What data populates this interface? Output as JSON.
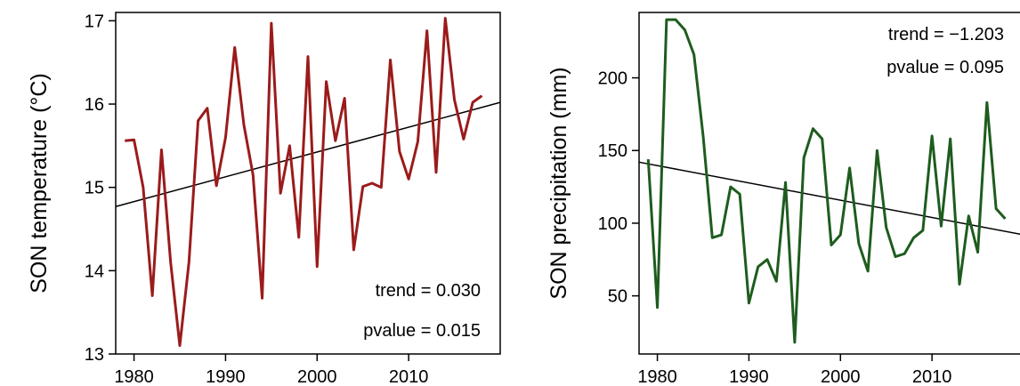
{
  "chart_data": [
    {
      "type": "line",
      "ylabel": "SON temperature (°C)",
      "xlabel": "",
      "xlim": [
        1978,
        2020
      ],
      "ylim": [
        13,
        17.1
      ],
      "xticks": [
        1980,
        1990,
        2000,
        2010
      ],
      "yticks": [
        13,
        14,
        15,
        16,
        17
      ],
      "grid": false,
      "series": [
        {
          "color": "#9b1b1b",
          "x": [
            1979,
            1980,
            1981,
            1982,
            1983,
            1984,
            1985,
            1986,
            1987,
            1988,
            1989,
            1990,
            1991,
            1992,
            1993,
            1994,
            1995,
            1996,
            1997,
            1998,
            1999,
            2000,
            2001,
            2002,
            2003,
            2004,
            2005,
            2006,
            2007,
            2008,
            2009,
            2010,
            2011,
            2012,
            2013,
            2014,
            2015,
            2016,
            2017,
            2018
          ],
          "y": [
            15.56,
            15.57,
            15.0,
            13.7,
            15.45,
            14.1,
            13.1,
            14.1,
            15.8,
            15.95,
            15.02,
            15.6,
            16.68,
            15.75,
            15.15,
            13.67,
            16.97,
            14.93,
            15.5,
            14.4,
            16.57,
            14.05,
            16.27,
            15.56,
            16.07,
            14.25,
            15.01,
            15.05,
            15.0,
            16.53,
            15.43,
            15.1,
            15.55,
            16.88,
            15.18,
            17.03,
            16.05,
            15.58,
            16.02,
            16.1
          ]
        }
      ],
      "trend_line": {
        "start": [
          1978,
          14.77
        ],
        "end": [
          2020,
          16.02
        ],
        "color": "#000000"
      },
      "annotations": [
        "trend = 0.030",
        "pvalue = 0.015"
      ]
    },
    {
      "type": "line",
      "ylabel": "SON precipitation (mm)",
      "xlabel": "",
      "xlim": [
        1978,
        2020
      ],
      "ylim": [
        10,
        245
      ],
      "xticks": [
        1980,
        1990,
        2000,
        2010
      ],
      "yticks": [
        50,
        100,
        150,
        200
      ],
      "grid": false,
      "series": [
        {
          "color": "#1e5c1e",
          "x": [
            1979,
            1980,
            1981,
            1982,
            1983,
            1984,
            1985,
            1986,
            1987,
            1988,
            1989,
            1990,
            1991,
            1992,
            1993,
            1994,
            1995,
            1996,
            1997,
            1998,
            1999,
            2000,
            2001,
            2002,
            2003,
            2004,
            2005,
            2006,
            2007,
            2008,
            2009,
            2010,
            2011,
            2012,
            2013,
            2014,
            2015,
            2016,
            2017,
            2018
          ],
          "y": [
            144,
            42,
            240,
            240,
            233,
            216,
            160,
            90,
            92,
            125,
            120,
            45,
            70,
            75,
            60,
            128,
            18,
            145,
            165,
            158,
            85,
            92,
            138,
            86,
            67,
            150,
            97,
            77,
            79,
            90,
            95,
            160,
            98,
            158,
            58,
            105,
            80,
            183,
            110,
            103
          ]
        }
      ],
      "trend_line": {
        "start": [
          1978,
          142
        ],
        "end": [
          2020,
          92
        ],
        "color": "#000000"
      },
      "annotations": [
        "trend = −1.203",
        "pvalue = 0.095"
      ]
    }
  ]
}
